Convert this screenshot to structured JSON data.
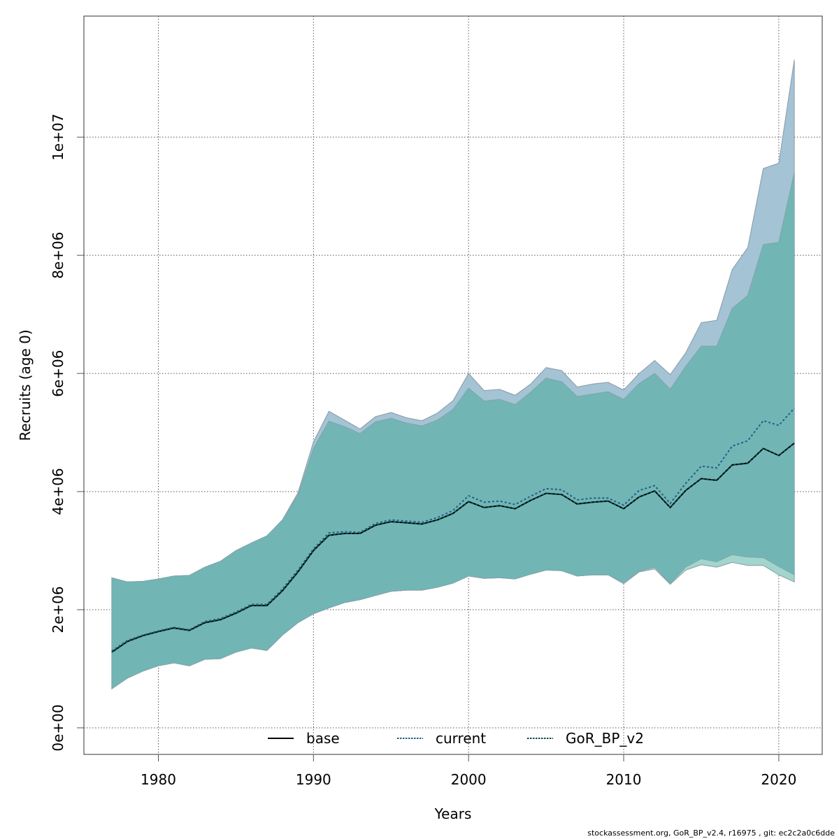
{
  "chart_data": {
    "type": "area",
    "title": "",
    "xlabel": "Years",
    "ylabel": "Recruits (age 0)",
    "xlim": [
      1975.2,
      2022.8
    ],
    "ylim": [
      -450000,
      12050000
    ],
    "grid": true,
    "x_ticks": [
      1980,
      1990,
      2000,
      2010,
      2020
    ],
    "x_tick_labels": [
      "1980",
      "1990",
      "2000",
      "2010",
      "2020"
    ],
    "y_ticks": [
      0,
      2000000,
      4000000,
      6000000,
      8000000,
      10000000
    ],
    "y_tick_labels": [
      "0e+00",
      "2e+06",
      "4e+06",
      "6e+06",
      "8e+06",
      "1e+07"
    ],
    "legend_position": "bottom",
    "x": [
      1977,
      1978,
      1979,
      1980,
      1981,
      1982,
      1983,
      1984,
      1985,
      1986,
      1987,
      1988,
      1989,
      1990,
      1991,
      1992,
      1993,
      1994,
      1995,
      1996,
      1997,
      1998,
      1999,
      2000,
      2001,
      2002,
      2003,
      2004,
      2005,
      2006,
      2007,
      2008,
      2009,
      2010,
      2011,
      2012,
      2013,
      2014,
      2015,
      2016,
      2017,
      2018,
      2019,
      2020,
      2021
    ],
    "series": [
      {
        "name": "base",
        "line_color": "#000000",
        "line_style": "solid",
        "values": [
          1.28,
          1.46,
          1.56,
          1.63,
          1.69,
          1.65,
          1.78,
          1.83,
          1.94,
          2.07,
          2.07,
          2.32,
          2.64,
          3.0,
          3.26,
          3.29,
          3.29,
          3.43,
          3.49,
          3.47,
          3.45,
          3.52,
          3.63,
          3.83,
          3.73,
          3.76,
          3.71,
          3.85,
          3.97,
          3.95,
          3.79,
          3.82,
          3.84,
          3.71,
          3.91,
          4.01,
          3.73,
          4.02,
          4.22,
          4.19,
          4.45,
          4.48,
          4.73,
          4.61,
          4.82
        ],
        "unit_multiplier": 1000000
      },
      {
        "name": "current",
        "line_color": "#1f5f8b",
        "line_style": "dotted",
        "band_color": "#a4c3d5",
        "values": [
          1.3,
          1.48,
          1.57,
          1.64,
          1.7,
          1.66,
          1.8,
          1.85,
          1.96,
          2.09,
          2.09,
          2.35,
          2.67,
          3.03,
          3.3,
          3.32,
          3.31,
          3.46,
          3.52,
          3.5,
          3.48,
          3.56,
          3.68,
          3.93,
          3.82,
          3.84,
          3.78,
          3.92,
          4.05,
          4.03,
          3.86,
          3.89,
          3.89,
          3.77,
          4.02,
          4.1,
          3.8,
          4.14,
          4.43,
          4.4,
          4.77,
          4.86,
          5.2,
          5.12,
          5.41
        ],
        "lower": [
          0.66,
          0.84,
          0.96,
          1.05,
          1.1,
          1.05,
          1.16,
          1.17,
          1.28,
          1.35,
          1.31,
          1.57,
          1.78,
          1.93,
          2.03,
          2.12,
          2.17,
          2.24,
          2.31,
          2.33,
          2.33,
          2.38,
          2.45,
          2.57,
          2.53,
          2.54,
          2.52,
          2.6,
          2.67,
          2.66,
          2.57,
          2.59,
          2.59,
          2.46,
          2.65,
          2.72,
          2.44,
          2.72,
          2.86,
          2.81,
          2.93,
          2.89,
          2.88,
          2.73,
          2.59
        ],
        "upper": [
          2.54,
          2.47,
          2.48,
          2.52,
          2.57,
          2.58,
          2.72,
          2.82,
          3.0,
          3.13,
          3.25,
          3.52,
          3.98,
          4.84,
          5.36,
          5.21,
          5.06,
          5.27,
          5.34,
          5.25,
          5.2,
          5.33,
          5.54,
          6.0,
          5.71,
          5.73,
          5.63,
          5.82,
          6.1,
          6.05,
          5.77,
          5.82,
          5.85,
          5.72,
          6.0,
          6.22,
          5.98,
          6.35,
          6.86,
          6.9,
          7.76,
          8.13,
          9.47,
          9.56,
          11.31
        ],
        "unit_multiplier": 1000000
      },
      {
        "name": "GoR_BP_v2",
        "line_color": "#0d4a46",
        "line_style": "dotted",
        "band_color": "#a2d5cc",
        "values": [
          1.28,
          1.46,
          1.56,
          1.63,
          1.69,
          1.65,
          1.78,
          1.83,
          1.94,
          2.07,
          2.07,
          2.32,
          2.64,
          3.0,
          3.26,
          3.29,
          3.29,
          3.43,
          3.49,
          3.47,
          3.45,
          3.52,
          3.63,
          3.83,
          3.73,
          3.76,
          3.71,
          3.85,
          3.97,
          3.95,
          3.79,
          3.82,
          3.84,
          3.71,
          3.91,
          4.01,
          3.73,
          4.02,
          4.22,
          4.19,
          4.45,
          4.48,
          4.73,
          4.61,
          4.82
        ],
        "lower": [
          0.66,
          0.84,
          0.96,
          1.05,
          1.1,
          1.05,
          1.16,
          1.17,
          1.28,
          1.35,
          1.31,
          1.57,
          1.78,
          1.93,
          2.03,
          2.12,
          2.17,
          2.24,
          2.31,
          2.33,
          2.33,
          2.38,
          2.45,
          2.57,
          2.53,
          2.54,
          2.52,
          2.6,
          2.67,
          2.66,
          2.57,
          2.59,
          2.59,
          2.44,
          2.64,
          2.69,
          2.43,
          2.67,
          2.76,
          2.72,
          2.8,
          2.75,
          2.75,
          2.59,
          2.47
        ],
        "upper": [
          2.54,
          2.47,
          2.48,
          2.52,
          2.57,
          2.58,
          2.72,
          2.82,
          3.0,
          3.13,
          3.25,
          3.52,
          3.94,
          4.73,
          5.19,
          5.1,
          4.98,
          5.18,
          5.24,
          5.16,
          5.11,
          5.21,
          5.39,
          5.75,
          5.53,
          5.56,
          5.47,
          5.68,
          5.92,
          5.86,
          5.61,
          5.65,
          5.69,
          5.56,
          5.83,
          6.0,
          5.73,
          6.12,
          6.46,
          6.46,
          7.1,
          7.32,
          8.18,
          8.22,
          9.4
        ],
        "unit_multiplier": 1000000
      }
    ],
    "overlap_color": "#72b5b5"
  },
  "footer": "stockassessment.org, GoR_BP_v2.4, r16975 , git: ec2c2a0c6dde"
}
